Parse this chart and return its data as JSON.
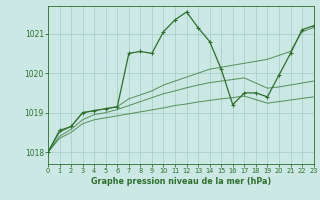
{
  "title": "Graphe pression niveau de la mer (hPa)",
  "bg_color": "#cce8e4",
  "grid_color": "#aacfc9",
  "line_color": "#2d6e2d",
  "xlim": [
    0,
    23
  ],
  "ylim": [
    1017.7,
    1021.7
  ],
  "yticks": [
    1018,
    1019,
    1020,
    1021
  ],
  "xticks": [
    0,
    1,
    2,
    3,
    4,
    5,
    6,
    7,
    8,
    9,
    10,
    11,
    12,
    13,
    14,
    15,
    16,
    17,
    18,
    19,
    20,
    21,
    22,
    23
  ],
  "series": [
    [
      1018.0,
      1018.55,
      1018.65,
      1019.0,
      1019.05,
      1019.1,
      1019.15,
      1020.5,
      1020.55,
      1020.5,
      1021.05,
      1021.35,
      1021.55,
      1021.15,
      1020.8,
      1020.1,
      1019.2,
      1019.5,
      1019.5,
      1019.4,
      1019.95,
      1020.5,
      1021.1,
      1021.2
    ],
    [
      1018.0,
      1018.5,
      1018.65,
      1019.0,
      1019.05,
      1019.1,
      1019.15,
      1019.35,
      1019.45,
      1019.55,
      1019.7,
      1019.8,
      1019.9,
      1020.0,
      1020.1,
      1020.15,
      1020.2,
      1020.25,
      1020.3,
      1020.35,
      1020.45,
      1020.55,
      1021.05,
      1021.15
    ],
    [
      1018.0,
      1018.4,
      1018.58,
      1018.82,
      1018.95,
      1019.0,
      1019.08,
      1019.18,
      1019.28,
      1019.38,
      1019.48,
      1019.55,
      1019.63,
      1019.7,
      1019.76,
      1019.8,
      1019.84,
      1019.88,
      1019.75,
      1019.62,
      1019.65,
      1019.7,
      1019.75,
      1019.8
    ],
    [
      1018.0,
      1018.35,
      1018.5,
      1018.72,
      1018.82,
      1018.87,
      1018.92,
      1018.97,
      1019.02,
      1019.07,
      1019.12,
      1019.18,
      1019.22,
      1019.27,
      1019.31,
      1019.35,
      1019.38,
      1019.42,
      1019.33,
      1019.24,
      1019.28,
      1019.32,
      1019.36,
      1019.4
    ]
  ],
  "marker_size": 3.0,
  "linewidth_main": 0.9,
  "linewidth_other": 0.75
}
